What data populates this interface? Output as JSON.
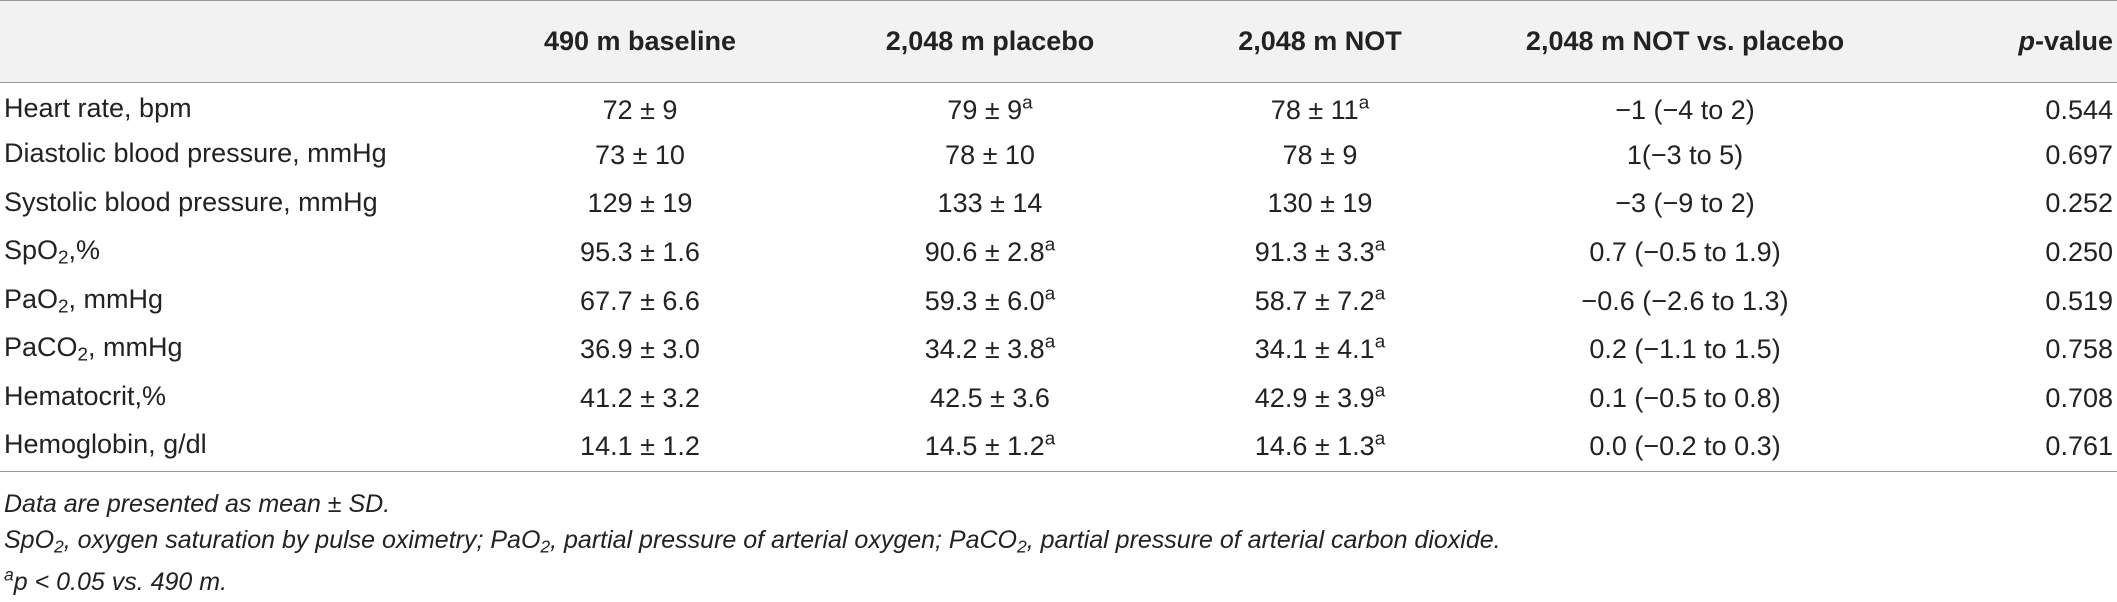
{
  "table": {
    "headers": [
      "",
      "490 m baseline",
      "2,048 m placebo",
      "2,048 m NOT",
      "2,048 m NOT vs. placebo",
      "p",
      "-value"
    ],
    "rows": [
      {
        "label": [
          "Heart rate, bpm",
          "",
          ""
        ],
        "baseline": [
          "72 ± 9",
          ""
        ],
        "placebo": [
          "79 ± 9",
          "a"
        ],
        "not": [
          "78 ± 11",
          "a"
        ],
        "diff": "−1 (−4 to 2)",
        "p": "0.544"
      },
      {
        "label": [
          "Diastolic blood pressure, mmHg",
          "",
          ""
        ],
        "baseline": [
          "73 ± 10",
          ""
        ],
        "placebo": [
          "78 ± 10",
          ""
        ],
        "not": [
          "78 ± 9",
          ""
        ],
        "diff": "1(−3 to 5)",
        "p": "0.697"
      },
      {
        "label": [
          "Systolic blood pressure, mmHg",
          "",
          ""
        ],
        "baseline": [
          "129 ± 19",
          ""
        ],
        "placebo": [
          "133 ± 14",
          ""
        ],
        "not": [
          "130 ± 19",
          ""
        ],
        "diff": "−3 (−9 to 2)",
        "p": "0.252"
      },
      {
        "label": [
          "SpO",
          "2",
          ",%"
        ],
        "baseline": [
          "95.3 ± 1.6",
          ""
        ],
        "placebo": [
          "90.6 ± 2.8",
          "a"
        ],
        "not": [
          "91.3 ± 3.3",
          "a"
        ],
        "diff": "0.7 (−0.5 to 1.9)",
        "p": "0.250"
      },
      {
        "label": [
          "PaO",
          "2",
          ", mmHg"
        ],
        "baseline": [
          "67.7 ± 6.6",
          ""
        ],
        "placebo": [
          "59.3 ± 6.0",
          "a"
        ],
        "not": [
          "58.7 ± 7.2",
          "a"
        ],
        "diff": "−0.6 (−2.6 to 1.3)",
        "p": "0.519"
      },
      {
        "label": [
          "PaCO",
          "2",
          ", mmHg"
        ],
        "baseline": [
          "36.9 ± 3.0",
          ""
        ],
        "placebo": [
          "34.2 ± 3.8",
          "a"
        ],
        "not": [
          "34.1 ± 4.1",
          "a"
        ],
        "diff": "0.2 (−1.1 to 1.5)",
        "p": "0.758"
      },
      {
        "label": [
          "Hematocrit,%",
          "",
          ""
        ],
        "baseline": [
          "41.2 ± 3.2",
          ""
        ],
        "placebo": [
          "42.5 ± 3.6",
          ""
        ],
        "not": [
          "42.9 ± 3.9",
          "a"
        ],
        "diff": "0.1 (−0.5 to 0.8)",
        "p": "0.708"
      },
      {
        "label": [
          "Hemoglobin, g/dl",
          "",
          ""
        ],
        "baseline": [
          "14.1 ± 1.2",
          ""
        ],
        "placebo": [
          "14.5 ± 1.2",
          "a"
        ],
        "not": [
          "14.6 ± 1.3",
          "a"
        ],
        "diff": "0.0 (−0.2 to 0.3)",
        "p": "0.761"
      }
    ]
  },
  "notes": {
    "line1": "Data are presented as mean ±  SD.",
    "line2": [
      "SpO",
      "2",
      ", oxygen saturation by pulse oximetry; PaO",
      "2",
      ", partial pressure of arterial oxygen; PaCO",
      "2",
      ", partial pressure of arterial carbon dioxide."
    ],
    "line3": [
      "a",
      "p <  0.05 vs. 490 m."
    ]
  }
}
